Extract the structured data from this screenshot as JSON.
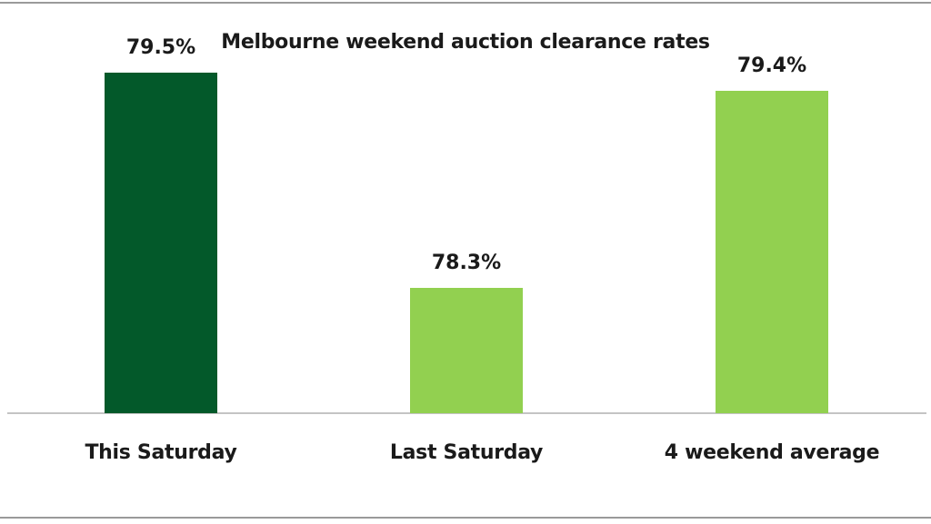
{
  "chart_data": {
    "type": "bar",
    "title": "Melbourne weekend auction clearance rates",
    "categories": [
      "This Saturday",
      "Last Saturday",
      "4 weekend average"
    ],
    "values": [
      79.5,
      78.3,
      79.4
    ],
    "value_labels": [
      "79.5%",
      "78.3%",
      "79.4%"
    ],
    "colors": [
      "#03592A",
      "#92D050",
      "#92D050"
    ],
    "xlabel": "",
    "ylabel": "",
    "ylim": [
      77.6,
      79.6
    ],
    "grid": false,
    "legend": "none",
    "y_axis_visible": false
  }
}
